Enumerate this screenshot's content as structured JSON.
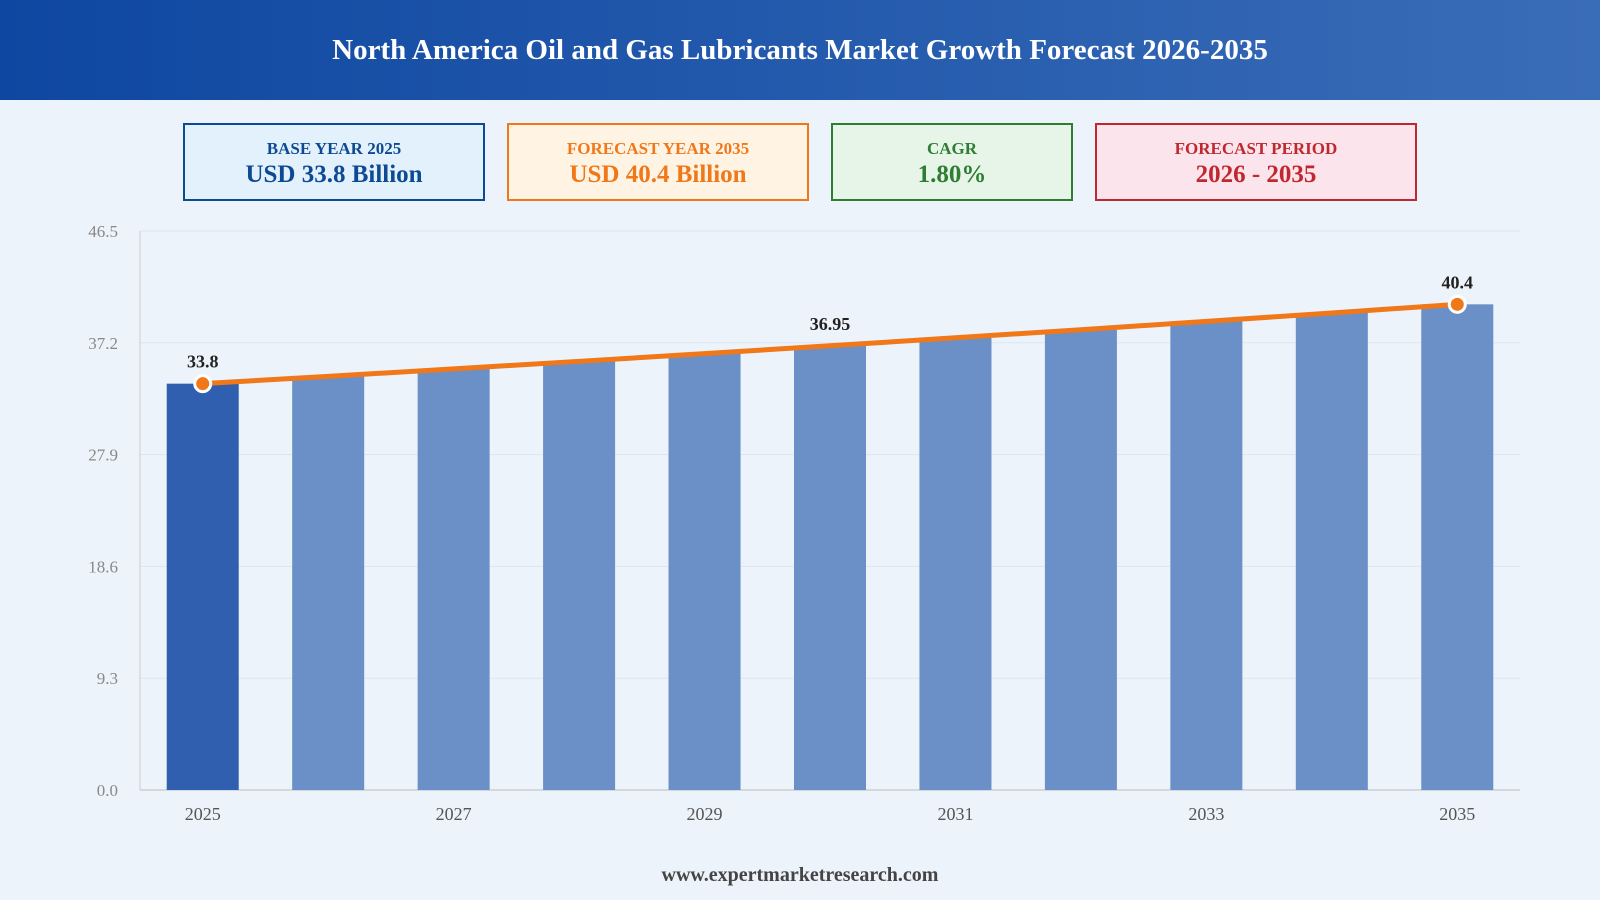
{
  "header": {
    "title": "North America Oil and Gas Lubricants Market Growth Forecast 2026-2035"
  },
  "cards": [
    {
      "label": "BASE YEAR 2025",
      "value": "USD 33.8 Billion",
      "color": "#0e4a94",
      "background": "#e3f1fc"
    },
    {
      "label": "FORECAST YEAR 2035",
      "value": "USD 40.4 Billion",
      "color": "#f07818",
      "background": "#fff3e3"
    },
    {
      "label": "CAGR",
      "value": "1.80%",
      "color": "#2e7d32",
      "background": "#e6f5e8"
    },
    {
      "label": "FORECAST PERIOD",
      "value": "2026 - 2035",
      "color": "#c0282f",
      "background": "#fce4ec"
    }
  ],
  "chart_data": {
    "type": "bar",
    "categories": [
      "2025",
      null,
      "2027",
      null,
      "2029",
      null,
      "2031",
      null,
      "2033",
      null,
      "2035"
    ],
    "values": [
      33.8,
      34.41,
      35.03,
      35.66,
      36.3,
      36.95,
      37.62,
      38.29,
      38.98,
      39.68,
      40.4
    ],
    "value_labels": [
      "33.8",
      null,
      null,
      null,
      null,
      "36.95",
      null,
      null,
      null,
      null,
      "40.4"
    ],
    "color": "#6b8fc7",
    "base_color": "#2f5fae",
    "line_color": "#f07818",
    "ylim": [
      0,
      46.5
    ],
    "yticks": [
      {
        "value": 0,
        "label": "0.0"
      },
      9.3,
      18.6,
      27.9,
      37.2,
      46.5
    ],
    "grid": true
  },
  "footer": {
    "source": "www.expertmarketresearch.com"
  }
}
